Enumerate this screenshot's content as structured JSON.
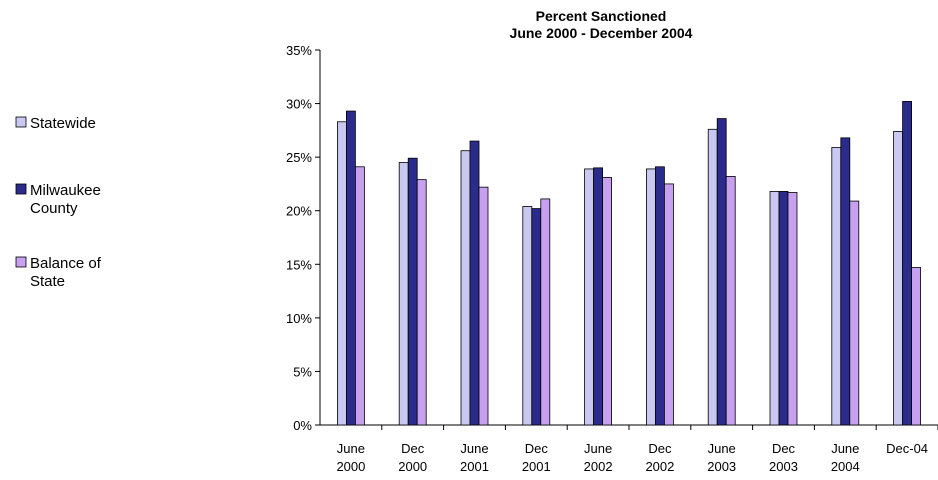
{
  "chart_data": {
    "type": "bar",
    "title": [
      "Percent Sanctioned",
      "June 2000 - December 2004"
    ],
    "xlabel": "",
    "ylabel": "",
    "ylim": [
      0,
      35
    ],
    "yticks": [
      "0%",
      "5%",
      "10%",
      "15%",
      "20%",
      "25%",
      "30%",
      "35%"
    ],
    "categories": [
      [
        "June",
        "2000"
      ],
      [
        "Dec",
        "2000"
      ],
      [
        "June",
        "2001"
      ],
      [
        "Dec",
        "2001"
      ],
      [
        "June",
        "2002"
      ],
      [
        "Dec",
        "2002"
      ],
      [
        "June",
        "2003"
      ],
      [
        "Dec",
        "2003"
      ],
      [
        "June",
        "2004"
      ],
      [
        "Dec-04"
      ]
    ],
    "series": [
      {
        "name": "Statewide",
        "color": "#c8c8f0",
        "values": [
          28.3,
          24.5,
          25.6,
          20.4,
          23.9,
          23.9,
          27.6,
          21.8,
          25.9,
          27.4
        ]
      },
      {
        "name": "Milwaukee County",
        "color": "#2b2b8c",
        "values": [
          29.3,
          24.9,
          26.5,
          20.2,
          24.0,
          24.1,
          28.6,
          21.8,
          26.8,
          30.2
        ]
      },
      {
        "name": "Balance of State",
        "color": "#c8a0f0",
        "values": [
          24.1,
          22.9,
          22.2,
          21.1,
          23.1,
          22.5,
          23.2,
          21.7,
          20.9,
          14.7
        ]
      }
    ],
    "legend": [
      [
        "Statewide"
      ],
      [
        "Milwaukee",
        "County"
      ],
      [
        "Balance of",
        "State"
      ]
    ],
    "legend_position": "left",
    "grid": false
  }
}
